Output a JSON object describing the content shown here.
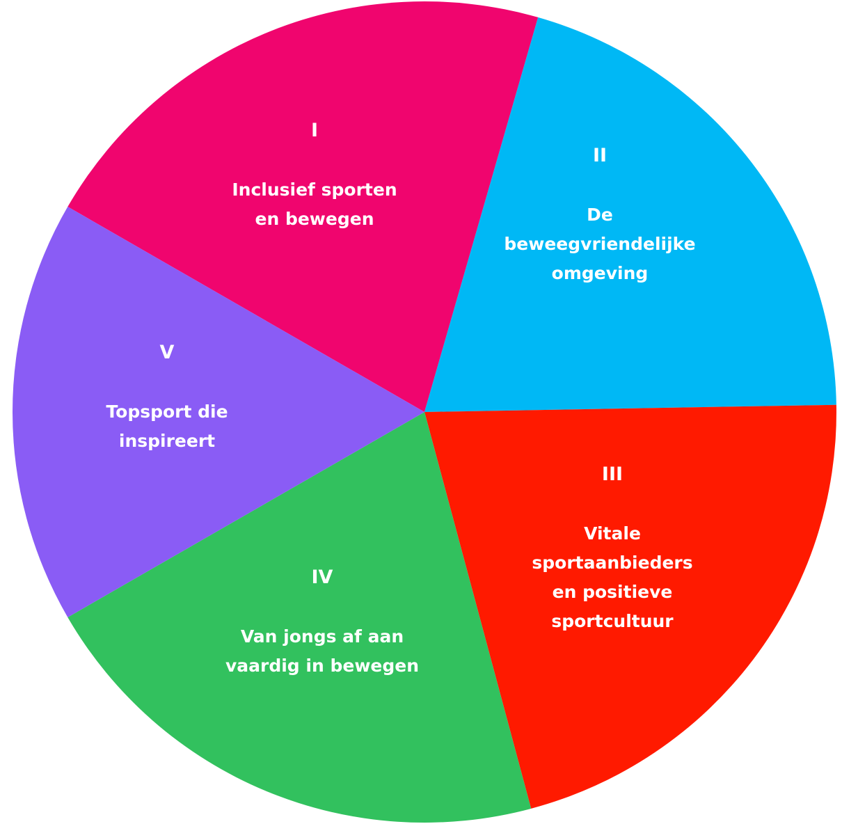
{
  "segments": [
    {
      "numeral": "I",
      "lines": [
        "Inclusief sporten",
        "en bewegen"
      ],
      "color": "#F0056E"
    },
    {
      "numeral": "II",
      "lines": [
        "De",
        "beweegvriendelijke",
        "omgeving"
      ],
      "color": "#00B8F5"
    },
    {
      "numeral": "III",
      "lines": [
        "Vitale",
        "sportaanbieders",
        "en positieve",
        "sportcultuur"
      ],
      "color": "#FF1A00"
    },
    {
      "numeral": "IV",
      "lines": [
        "Van jongs af aan",
        "vaardig in bewegen"
      ],
      "color": "#32C15E"
    },
    {
      "numeral": "V",
      "lines": [
        "Topsport die",
        "inspireert"
      ],
      "color": "#8A5CF5"
    }
  ]
}
